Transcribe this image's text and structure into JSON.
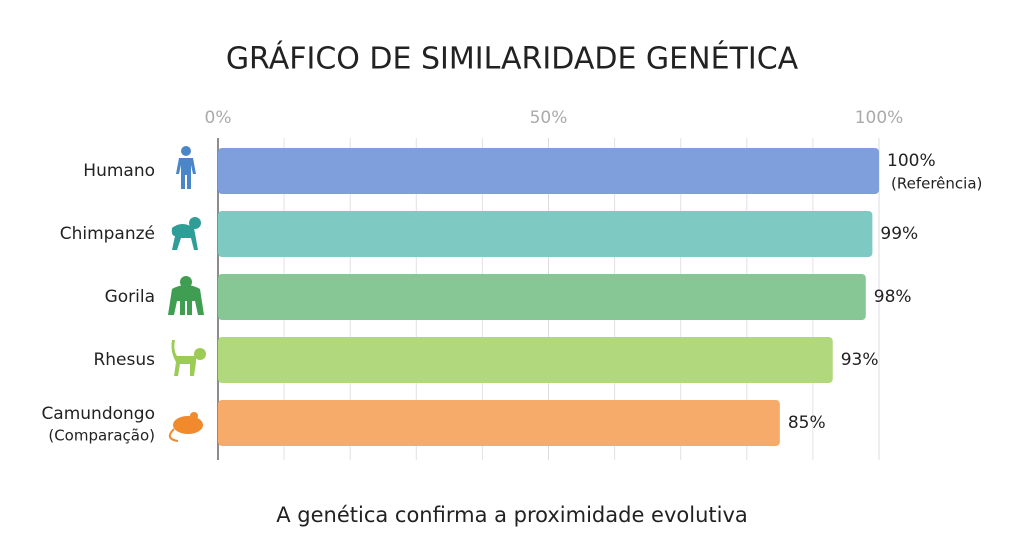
{
  "chart_data": {
    "type": "hbar",
    "title": "GRÁFICO DE SIMILARIDADE GENÉTICA",
    "footer": "A genética confirma a proximidade evolutiva",
    "categories": [
      "Humano",
      "Chimpanzé",
      "Gorila",
      "Rhesus",
      "Camundongo"
    ],
    "category_notes": [
      null,
      null,
      null,
      null,
      "(Comparação)"
    ],
    "values": [
      100,
      99,
      98,
      93,
      85
    ],
    "value_labels": [
      "100%",
      "99%",
      "98%",
      "93%",
      "85%"
    ],
    "value_notes": [
      "(Referência)",
      null,
      null,
      null,
      null
    ],
    "colors": [
      "#7f9fdc",
      "#7ecac3",
      "#86c795",
      "#b2d87d",
      "#f7ab6a"
    ],
    "icon_colors": [
      "#4a86c8",
      "#2f9e96",
      "#3f9e52",
      "#9ccc55",
      "#f08a2c"
    ],
    "xlim": [
      0,
      100
    ],
    "xticks": [
      {
        "value": 0,
        "label": "0%"
      },
      {
        "value": 50,
        "label": "50%"
      },
      {
        "value": 100,
        "label": "100%"
      }
    ],
    "minor_xticks": [
      10,
      20,
      30,
      40,
      60,
      70,
      80,
      90
    ],
    "grid": true
  }
}
